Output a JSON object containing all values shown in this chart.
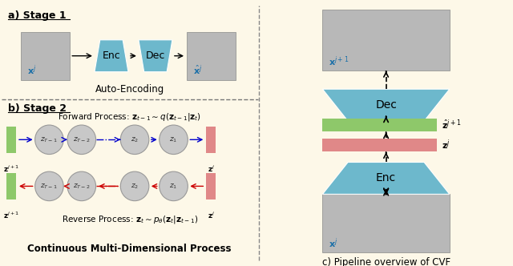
{
  "bg_color": "#fdf8e8",
  "bg_color_right": "#ede8f5",
  "enc_dec_color": "#6db8cc",
  "green_bar_color": "#8ec86a",
  "red_bar_color": "#e08888",
  "circle_color": "#c8c8c8",
  "circle_edge_color": "#999999",
  "blue_arrow_color": "#0000cc",
  "red_arrow_color": "#cc0000",
  "title_a": "a) Stage 1",
  "title_b": "b) Stage 2",
  "label_auto": "Auto-Encoding",
  "label_continuous": "Continuous Multi-Dimensional Process",
  "label_pipeline": "c) Pipeline overview of CVF",
  "enc_label": "Enc",
  "dec_label": "Dec"
}
